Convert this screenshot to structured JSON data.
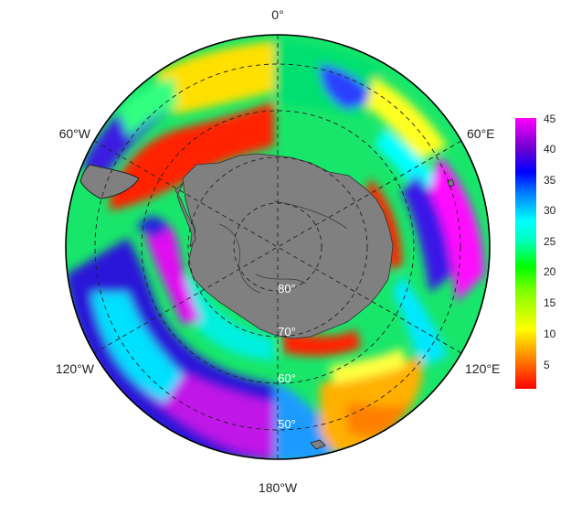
{
  "map": {
    "projection": "south-polar-stereographic",
    "longitude_labels": {
      "top": "0°",
      "upper_right": "60°E",
      "lower_right": "120°E",
      "bottom": "180°W",
      "lower_left": "120°W",
      "upper_left": "60°W"
    },
    "latitude_labels": [
      "80°",
      "70°",
      "60°",
      "50°"
    ],
    "land_color": "#808080",
    "colormap": [
      "#ff0000",
      "#ffa500",
      "#ffff00",
      "#00ff00",
      "#00ffff",
      "#0070ff",
      "#0000cd",
      "#7b00d0",
      "#ff00ff"
    ]
  },
  "colorbar": {
    "min": 1,
    "max": 45,
    "ticks": [
      "5",
      "10",
      "15",
      "20",
      "25",
      "30",
      "35",
      "40",
      "45"
    ]
  }
}
